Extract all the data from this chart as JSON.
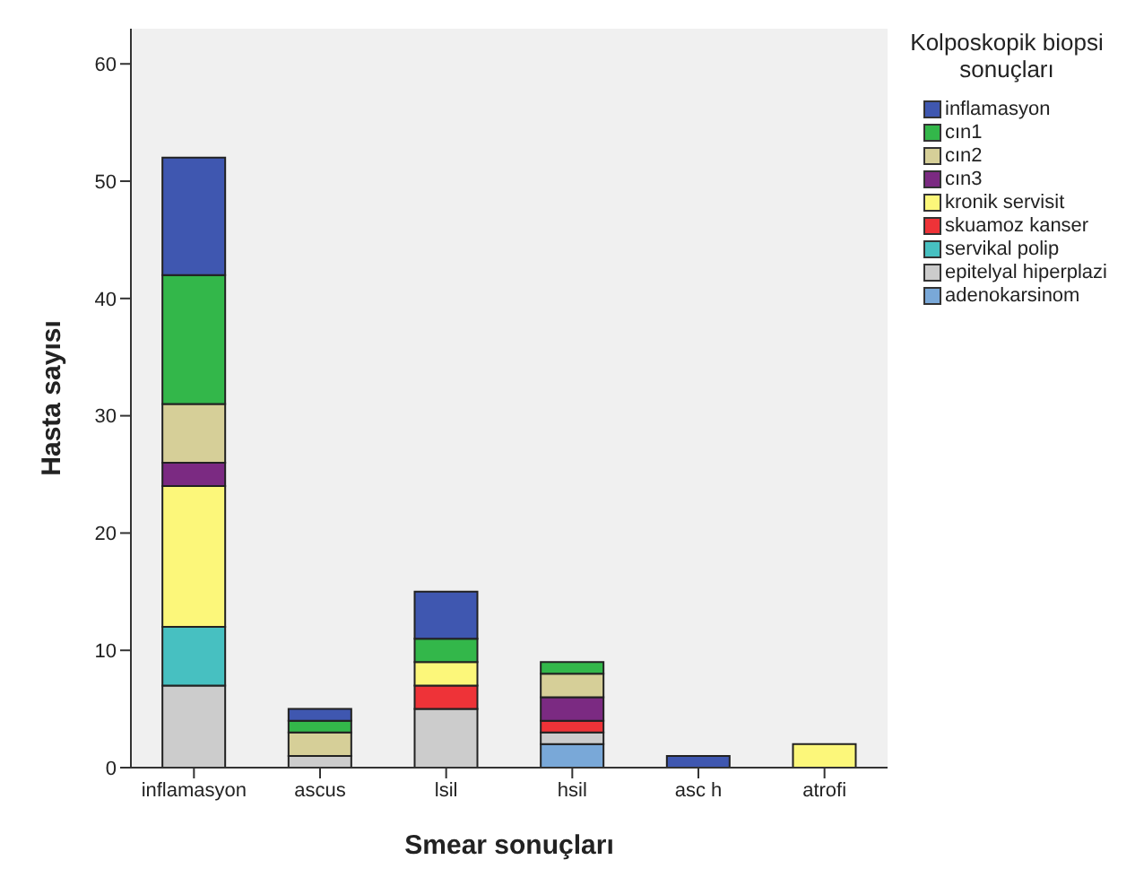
{
  "chart_data": {
    "type": "bar",
    "stacked": true,
    "xlabel": "Smear sonuçları",
    "ylabel": "Hasta sayısı",
    "legend_title": "Kolposkopik biopsi sonuçları",
    "legend": "right",
    "grid": false,
    "categories": [
      "inflamasyon",
      "ascus",
      "lsil",
      "hsil",
      "asc h",
      "atrofi"
    ],
    "ylim": [
      0,
      63
    ],
    "yticks": [
      0,
      10,
      20,
      30,
      40,
      50,
      60
    ],
    "series": [
      {
        "name": "adenokarsinom",
        "color": "#79a8d8",
        "values": [
          0,
          0,
          0,
          2,
          0,
          0
        ]
      },
      {
        "name": "epitelyal hiperplazi",
        "color": "#cccccc",
        "values": [
          7,
          1,
          5,
          1,
          0,
          0
        ]
      },
      {
        "name": "servikal polip",
        "color": "#47c0c1",
        "values": [
          5,
          0,
          0,
          0,
          0,
          0
        ]
      },
      {
        "name": "skuamoz kanser",
        "color": "#ee3338",
        "values": [
          0,
          0,
          2,
          1,
          0,
          0
        ]
      },
      {
        "name": "kronik servisit",
        "color": "#fcf77a",
        "values": [
          12,
          0,
          2,
          0,
          0,
          2
        ]
      },
      {
        "name": "cın3",
        "color": "#7b2a82",
        "values": [
          2,
          0,
          0,
          2,
          0,
          0
        ]
      },
      {
        "name": "cın2",
        "color": "#d6cf98",
        "values": [
          5,
          2,
          0,
          2,
          0,
          0
        ]
      },
      {
        "name": "cın1",
        "color": "#33b74a",
        "values": [
          11,
          1,
          2,
          1,
          0,
          0
        ]
      },
      {
        "name": "inflamasyon",
        "color": "#3f57b0",
        "values": [
          10,
          1,
          4,
          0,
          1,
          0
        ]
      }
    ]
  }
}
